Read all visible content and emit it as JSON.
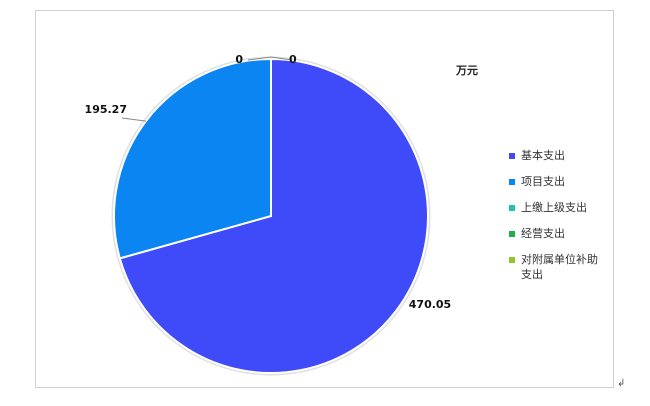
{
  "chart_data": {
    "type": "pie",
    "unit_label": "万元",
    "categories": [
      "基本支出",
      "项目支出",
      "上缴上级支出",
      "经营支出",
      "对附属单位补助支出"
    ],
    "values": [
      470.05,
      195.27,
      0,
      0,
      0
    ],
    "data_labels": [
      "470.05",
      "195.27",
      "0",
      "0",
      ""
    ],
    "colors": [
      "#3f4bf8",
      "#0b85f2",
      "#20c0b0",
      "#20b050",
      "#8cc82a"
    ],
    "legend_position": "right"
  },
  "page": {
    "return_mark": "↲"
  }
}
